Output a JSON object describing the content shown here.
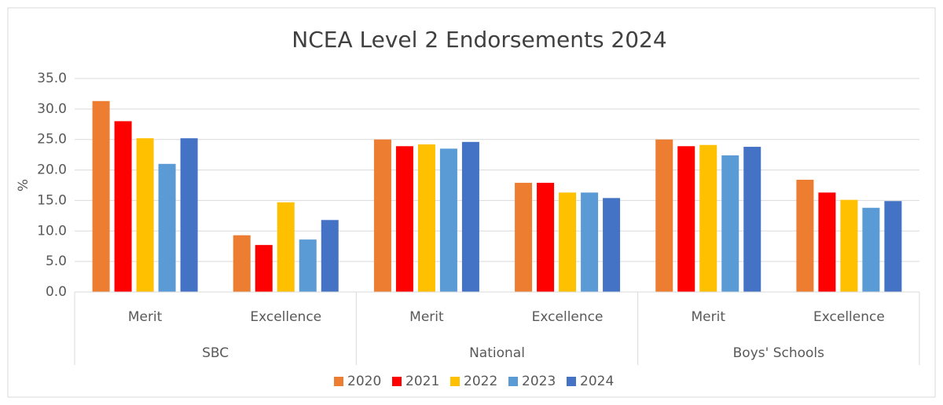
{
  "chart_data": {
    "type": "bar",
    "title": "NCEA Level 2 Endorsements 2024",
    "y_label": "%",
    "groups": [
      {
        "name": "SBC",
        "categories": [
          "Merit",
          "Excellence"
        ]
      },
      {
        "name": "National",
        "categories": [
          "Merit",
          "Excellence"
        ]
      },
      {
        "name": "Boys' Schools",
        "categories": [
          "Merit",
          "Excellence"
        ]
      }
    ],
    "series": [
      {
        "name": "2020",
        "color": "#ED7D31",
        "values": [
          31.3,
          9.3,
          25.0,
          17.9,
          25.0,
          18.4
        ]
      },
      {
        "name": "2021",
        "color": "#FF0000",
        "values": [
          28.0,
          7.7,
          23.9,
          17.9,
          23.9,
          16.3
        ]
      },
      {
        "name": "2022",
        "color": "#FFC000",
        "values": [
          25.2,
          14.7,
          24.2,
          16.3,
          24.1,
          15.1
        ]
      },
      {
        "name": "2023",
        "color": "#5B9BD5",
        "values": [
          21.0,
          8.6,
          23.5,
          16.3,
          22.4,
          13.8
        ]
      },
      {
        "name": "2024",
        "color": "#4472C4",
        "values": [
          25.2,
          11.8,
          24.6,
          15.4,
          23.8,
          14.9
        ]
      }
    ],
    "ylim": [
      0,
      35
    ],
    "yticks": [
      {
        "value": 0,
        "label": "0.0"
      },
      {
        "value": 5,
        "label": "5.0"
      },
      {
        "value": 10,
        "label": "10.0"
      },
      {
        "value": 15,
        "label": "15.0"
      },
      {
        "value": 20,
        "label": "20.0"
      },
      {
        "value": 25,
        "label": "25.0"
      },
      {
        "value": 30,
        "label": "30.0"
      },
      {
        "value": 35,
        "label": "35.0"
      }
    ],
    "grid": true,
    "legend": "bottom"
  }
}
